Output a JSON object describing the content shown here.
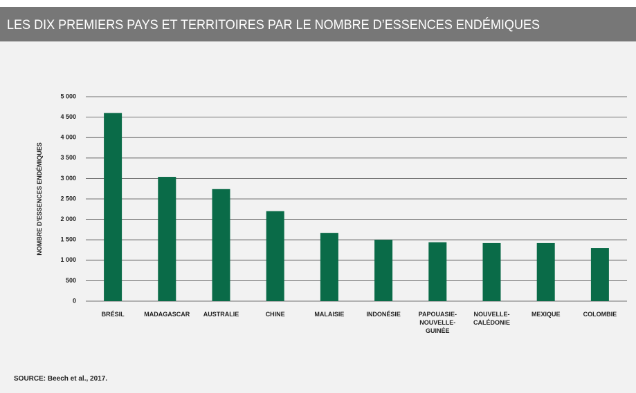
{
  "chart_data": {
    "type": "bar",
    "title": "LES DIX PREMIERS PAYS ET TERRITOIRES PAR LE NOMBRE D’ESSENCES ENDÉMIQUES",
    "y_label": "NOMBRE D’ESSENCES ENDÉMIQUES",
    "source": "SOURCE: Beech et al., 2017.",
    "categories": [
      "BRÉSIL",
      "MADAGASCAR",
      "AUSTRALIE",
      "CHINE",
      "MALAISIE",
      "INDONÉSIE",
      "PAPOUASIE-\nNOUVELLE-\nGUINÉE",
      "NOUVELLE-\nCALÉDONIE",
      "MEXIQUE",
      "COLOMBIE"
    ],
    "values": [
      4600,
      3040,
      2740,
      2200,
      1670,
      1500,
      1440,
      1420,
      1420,
      1300
    ],
    "color": "#0a6b48",
    "ylim": [
      0,
      5000
    ],
    "yticks": [
      0,
      500,
      {
        "value": 1000,
        "label": "1 000"
      },
      {
        "value": 1500,
        "label": "1 500"
      },
      {
        "value": 2000,
        "label": "2 000"
      },
      {
        "value": 2500,
        "label": "2 500"
      },
      {
        "value": 3000,
        "label": "3 000"
      },
      {
        "value": 3500,
        "label": "3 500"
      },
      {
        "value": 4000,
        "label": "4 000"
      },
      {
        "value": 4500,
        "label": "4 500"
      },
      {
        "value": 5000,
        "label": "5 000"
      }
    ],
    "grid": true
  }
}
